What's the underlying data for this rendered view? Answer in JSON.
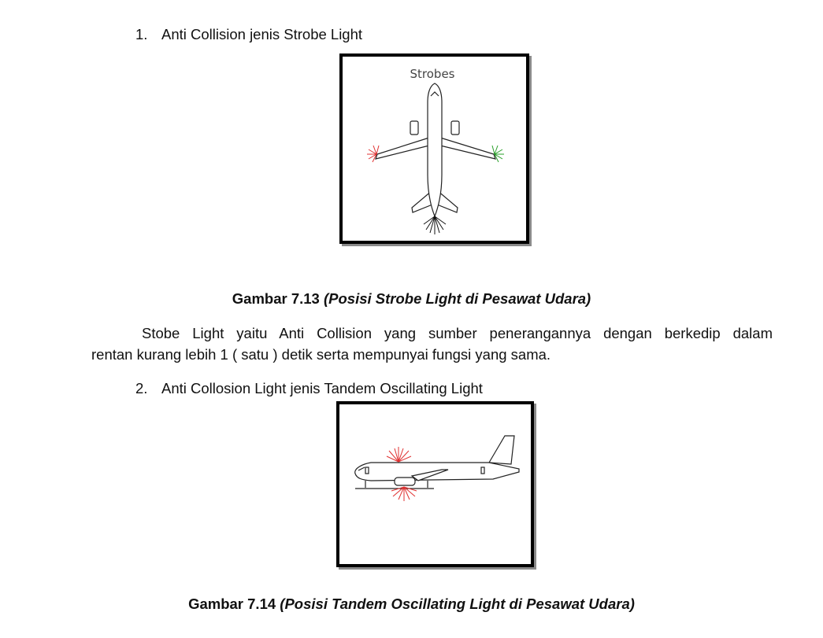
{
  "items": [
    {
      "number": "1.",
      "text": "Anti Collision jenis Strobe Light"
    },
    {
      "number": "2.",
      "text": "Anti Collosion Light jenis Tandem Oscillating Light"
    }
  ],
  "figure1": {
    "label": "Strobes",
    "caption_number": "Gambar 7.13",
    "caption_text": "(Posisi Strobe Light di Pesawat Udara)"
  },
  "paragraph": {
    "line1": "Stobe Light yaitu Anti Collision yang sumber penerangannya dengan berkedip dalam",
    "line2": "rentan kurang lebih 1 ( satu ) detik serta mempunyai fungsi yang sama."
  },
  "figure2": {
    "caption_number": "Gambar 7.14",
    "caption_text": "(Posisi Tandem Oscillating Light di Pesawat Udara)"
  },
  "colors": {
    "strobe_red": "#e03030",
    "strobe_green": "#2aa02a",
    "beacon_red": "#e03030"
  }
}
